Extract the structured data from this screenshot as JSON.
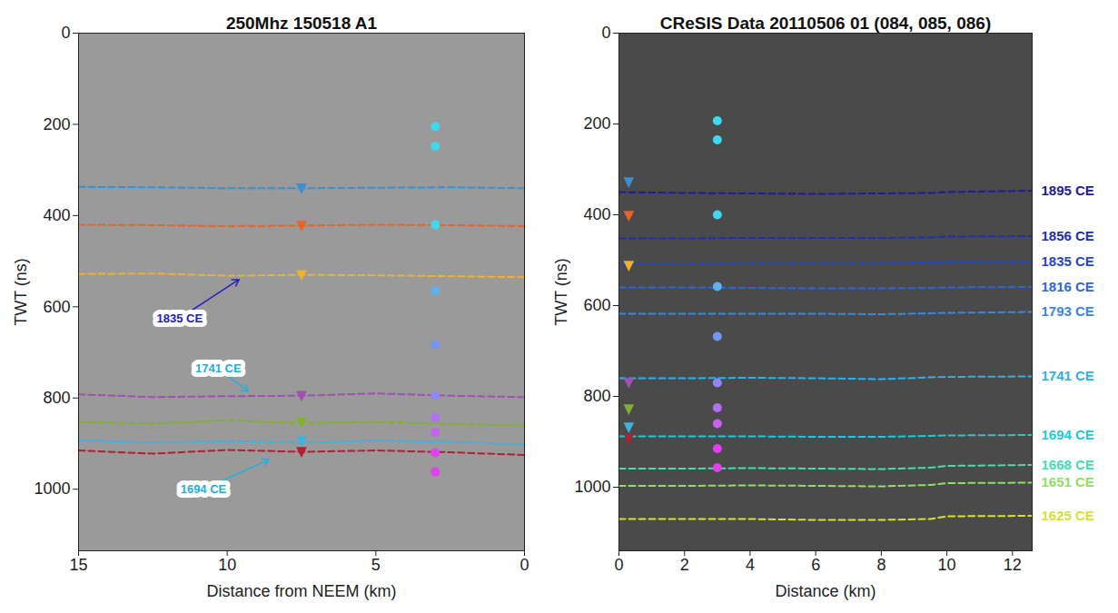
{
  "chart_data": [
    {
      "type": "radargram",
      "title": "250Mhz 150518 A1",
      "x_label": "Distance from NEEM (km)",
      "y_label": "TWT (ns)",
      "xlim": [
        15,
        0
      ],
      "xticks": [
        15,
        10,
        5,
        0
      ],
      "ylim": [
        1135,
        0
      ],
      "yticks": [
        0,
        200,
        400,
        600,
        800,
        1000
      ],
      "series": [
        {
          "type": "line",
          "line_style": "dashed",
          "color": "#3a8fd1",
          "x": [
            15,
            12.5,
            10,
            7.5,
            5,
            2.5,
            0
          ],
          "values": [
            337,
            338,
            340,
            340,
            339,
            338,
            340
          ]
        },
        {
          "type": "line",
          "line_style": "dashed",
          "color": "#e8622a",
          "x": [
            15,
            12.5,
            10,
            7.5,
            5,
            2.5,
            0
          ],
          "values": [
            420,
            421,
            423,
            422,
            420,
            421,
            423
          ]
        },
        {
          "type": "line",
          "line_style": "dashed",
          "color": "#f0b030",
          "x": [
            15,
            12.5,
            10,
            7.5,
            5,
            2.5,
            0
          ],
          "values": [
            528,
            527,
            532,
            530,
            531,
            533,
            535
          ]
        },
        {
          "type": "line",
          "line_style": "dashed",
          "color": "#a050b0",
          "x": [
            15,
            12.5,
            10,
            7.5,
            5,
            2.5,
            0
          ],
          "values": [
            792,
            798,
            796,
            795,
            790,
            795,
            798
          ]
        },
        {
          "type": "line",
          "line_style": "dashed",
          "color": "#80b030",
          "x": [
            15,
            12.5,
            10,
            7.5,
            5,
            2.5,
            0
          ],
          "values": [
            852,
            856,
            849,
            855,
            852,
            857,
            860
          ]
        },
        {
          "type": "line",
          "line_style": "dashed",
          "color": "#40b0e0",
          "x": [
            15,
            12.5,
            10,
            7.5,
            5,
            2.5,
            0
          ],
          "values": [
            892,
            898,
            894,
            898,
            893,
            896,
            902
          ]
        },
        {
          "type": "line",
          "line_style": "dashed",
          "color": "#b02030",
          "x": [
            15,
            12.5,
            10,
            7.5,
            5,
            2.5,
            0
          ],
          "values": [
            915,
            922,
            914,
            918,
            915,
            919,
            925
          ]
        },
        {
          "type": "scatter",
          "marker": "triangle_down",
          "x": [
            7.5,
            7.5,
            7.5,
            7.5,
            7.5,
            7.5,
            7.5
          ],
          "values": [
            340,
            422,
            530,
            795,
            853,
            895,
            918
          ],
          "colors": [
            "#3a8fd1",
            "#e8622a",
            "#f0b030",
            "#a050b0",
            "#80b030",
            "#40b0e0",
            "#b02030"
          ]
        },
        {
          "type": "scatter",
          "marker": "circle",
          "x": [
            3,
            3,
            3,
            3,
            3,
            3,
            3,
            3,
            3,
            3
          ],
          "values": [
            205,
            248,
            420,
            565,
            683,
            795,
            843,
            875,
            920,
            962
          ],
          "colors": [
            "#40d8f0",
            "#40d8f0",
            "#40d8f0",
            "#60b0f0",
            "#7098f0",
            "#9088f0",
            "#b070f0",
            "#c860f0",
            "#e040f0",
            "#e040f0"
          ]
        }
      ],
      "annotations": [
        {
          "text": "1835 CE",
          "x": 11.6,
          "y": 625,
          "arrow_x": 9.6,
          "arrow_y": 540,
          "color": "#2020c0"
        },
        {
          "text": "1741 CE",
          "x": 10.3,
          "y": 735,
          "arrow_x": 9.3,
          "arrow_y": 785,
          "color": "#20b0e0"
        },
        {
          "text": "1694 CE",
          "x": 10.8,
          "y": 1000,
          "arrow_x": 8.6,
          "arrow_y": 935,
          "color": "#20b0e0"
        }
      ]
    },
    {
      "type": "radargram",
      "title": "CReSIS Data 20110506 01 (084, 085, 086)",
      "x_label": "Distance (km)",
      "y_label": "TWT (ns)",
      "xlim": [
        0,
        12.6
      ],
      "xticks": [
        0,
        2,
        4,
        6,
        8,
        10,
        12
      ],
      "ylim": [
        1140,
        0
      ],
      "yticks": [
        0,
        200,
        400,
        600,
        800,
        1000
      ],
      "series": [
        {
          "type": "line",
          "line_style": "dashed",
          "name": "1895 CE",
          "color": "#1c1c9c",
          "x": [
            0,
            2,
            4,
            6,
            8,
            9.5,
            10,
            12.6
          ],
          "values": [
            350,
            352,
            353,
            354,
            353,
            352,
            350,
            347
          ]
        },
        {
          "type": "line",
          "line_style": "dashed",
          "name": "1856 CE",
          "color": "#1e2fb0",
          "x": [
            0,
            2,
            4,
            6,
            8,
            9.5,
            10,
            12.6
          ],
          "values": [
            452,
            452,
            451,
            451,
            451,
            450,
            448,
            447
          ]
        },
        {
          "type": "line",
          "line_style": "dashed",
          "name": "1835 CE",
          "color": "#2547c8",
          "x": [
            0,
            2,
            4,
            6,
            8,
            9.5,
            10,
            12.6
          ],
          "values": [
            507,
            507,
            506,
            506,
            506,
            505,
            504,
            504
          ]
        },
        {
          "type": "line",
          "line_style": "dashed",
          "name": "1816 CE",
          "color": "#2e66d8",
          "x": [
            0,
            2,
            4,
            6,
            8,
            9.5,
            10,
            12.6
          ],
          "values": [
            560,
            560,
            561,
            562,
            562,
            561,
            560,
            559
          ]
        },
        {
          "type": "line",
          "line_style": "dashed",
          "name": "1793 CE",
          "color": "#3a86e0",
          "x": [
            0,
            2,
            4,
            6,
            8,
            9.5,
            10,
            12.6
          ],
          "values": [
            618,
            618,
            618,
            618,
            619,
            617,
            616,
            614
          ]
        },
        {
          "type": "line",
          "line_style": "dashed",
          "name": "1741 CE",
          "color": "#30b0e8",
          "x": [
            0,
            2,
            4,
            6,
            8,
            9.5,
            10,
            12.6
          ],
          "values": [
            760,
            760,
            759,
            760,
            762,
            758,
            757,
            756
          ]
        },
        {
          "type": "line",
          "line_style": "dashed",
          "name": "1694 CE",
          "color": "#20c8d8",
          "x": [
            0,
            2,
            4,
            6,
            8,
            9.5,
            10,
            12.6
          ],
          "values": [
            888,
            888,
            888,
            889,
            889,
            887,
            886,
            885
          ]
        },
        {
          "type": "line",
          "line_style": "dashed",
          "name": "1668 CE",
          "color": "#40e0b0",
          "x": [
            0,
            2,
            4,
            6,
            8,
            9.5,
            10,
            12.6
          ],
          "values": [
            959,
            959,
            958,
            959,
            960,
            957,
            953,
            951
          ]
        },
        {
          "type": "line",
          "line_style": "dashed",
          "name": "1651 CE",
          "color": "#90e060",
          "x": [
            0,
            2,
            4,
            6,
            8,
            9.5,
            10,
            12.6
          ],
          "values": [
            997,
            997,
            996,
            997,
            998,
            995,
            991,
            990
          ]
        },
        {
          "type": "line",
          "line_style": "dashed",
          "name": "1625 CE",
          "color": "#d8e030",
          "x": [
            0,
            2,
            4,
            6,
            8,
            9.5,
            10,
            12.6
          ],
          "values": [
            1070,
            1070,
            1070,
            1072,
            1072,
            1070,
            1064,
            1063
          ]
        },
        {
          "type": "scatter",
          "marker": "triangle_down",
          "x": [
            0.3,
            0.3,
            0.3,
            0.3,
            0.3,
            0.3,
            0.3
          ],
          "values": [
            328,
            402,
            512,
            770,
            828,
            868,
            893
          ],
          "colors": [
            "#3a8fd1",
            "#e8622a",
            "#f0b030",
            "#a050b0",
            "#80b030",
            "#40b0e0",
            "#b02030"
          ]
        },
        {
          "type": "scatter",
          "marker": "circle",
          "x": [
            3,
            3,
            3,
            3,
            3,
            3,
            3,
            3,
            3,
            3
          ],
          "values": [
            193,
            235,
            400,
            558,
            668,
            770,
            825,
            860,
            915,
            957
          ],
          "colors": [
            "#40d8f0",
            "#40d8f0",
            "#40d8f0",
            "#60b0f0",
            "#7098f0",
            "#9088f0",
            "#b070f0",
            "#c860f0",
            "#e040f0",
            "#e040f0"
          ]
        }
      ]
    }
  ]
}
